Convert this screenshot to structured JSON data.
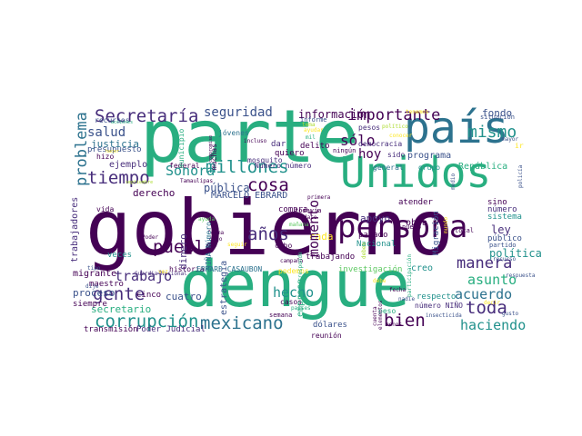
{
  "palette": {
    "dark_purple": "#440154",
    "indigo": "#472d7b",
    "blue": "#3b528b",
    "steel": "#2c728e",
    "teal": "#21918c",
    "green": "#28ae80",
    "lime": "#5ec962",
    "yellow_green": "#addc30",
    "yellow": "#fde725"
  },
  "words": {
    "gobierno": "gobierno",
    "parte": "parte",
    "dengue": "dengue",
    "unidos": "Unidos",
    "pais": "país",
    "persona": "persona",
    "tiempo": "tiempo",
    "corrupcion": "corrupción",
    "millones": "millones",
    "secretaria": "Secretaría",
    "importante": "importante",
    "gente": "gente",
    "mexicano": "mexicano",
    "bien": "bien",
    "toda": "toda",
    "mismo": "mismo",
    "manera": "manera",
    "pueblo": "pueblo",
    "anos": "años",
    "trabajo": "trabajo",
    "momento": "momento",
    "cosa": "cosa",
    "solo": "sólo",
    "asunto": "asunto",
    "acuerdo": "acuerdo",
    "haciendo": "haciendo",
    "hecho": "hecho",
    "hoy": "hoy",
    "problema": "problema",
    "salud": "salud",
    "sonora": "Sonora",
    "seguridad": "seguridad",
    "informacion": "información",
    "justicia": "justicia",
    "ejemplo": "ejemplo",
    "derecho": "derecho",
    "marcelo_ebrard": "MARCELO EBRARD",
    "publica": "pública",
    "apoyo": "apoyo",
    "programa": "programa",
    "republica": "República",
    "politica": "política",
    "ley": "ley",
    "fondo": "fondo",
    "presupuesto": "presupuesto",
    "estrategia": "estrategia",
    "empresa": "empresa",
    "secretario": "secretario",
    "proceso": "proceso",
    "migrante": "migrante",
    "cuatro": "cuatro",
    "maestro": "maestro",
    "siempre": "siempre",
    "transmision": "transmisión",
    "poder_judicial": "Poder Judicial",
    "cinco": "cinco",
    "veces": "veces",
    "vida": "vida",
    "historia": "historia",
    "dinero": "dinero",
    "cada": "cada",
    "nacional": "Nacional",
    "obra": "obra",
    "investigacion": "investigación",
    "migracion": "Migración",
    "respecto": "respecto",
    "pasado": "pasado",
    "trabajando": "trabajando",
    "creo": "creo",
    "general": "general",
    "grupo": "grupo",
    "democracia": "democracia",
    "delito": "delito",
    "quiero": "quiero",
    "atender": "atender",
    "numero_numero": "Número número",
    "numero_nino": "número NIÑO",
    "nina_numero": "NIÑA Número",
    "ebrard_casaubon": "EBRARD CASAUBON",
    "mosquito": "mosquito",
    "jovenes": "jóvenes",
    "federal": "federal",
    "compra": "compra",
    "cabo": "cabo",
    "semana": "semana",
    "casos": "casos",
    "dolares": "dólares",
    "reunion": "reunión",
    "publico": "público",
    "sistema": "sistema",
    "numero": "número",
    "sino": "sino",
    "situacion": "situación",
    "hizo": "hizo",
    "muchas": "muchas",
    "dar": "dar",
    "trabajadores": "trabajadores",
    "recursos": "recursos",
    "municipio": "municipio",
    "pesos": "pesos",
    "informe": "informe",
    "todavia": "todavía",
    "ningun": "ningún",
    "sido": "sido",
    "podemos": "podemos",
    "guardia_nacional": "Guardia Nacional",
    "poder": "Poder",
    "tipo": "tipo",
    "partido": "partido",
    "total": "total",
    "nuevo": "nuevo",
    "dato": "dato",
    "primera": "primera",
    "campana": "campaña",
    "manana": "mañana",
    "paises": "países",
    "fecha": "fecha",
    "ayuda": "ayuda",
    "dije": "dije",
    "forma": "forma",
    "digo": "digo",
    "incluso": "incluso",
    "mayor": "mayor",
    "medio": "medio",
    "tema": "tema",
    "mil": "mil",
    "ayudar": "ayudar",
    "conocer": "conocer",
    "tamaulipas": "Tamaulipas",
    "septiembre": "septiembre",
    "acciones": "acciones",
    "peso": "peso",
    "gusto": "gusto",
    "insecticida": "insecticida",
    "participacion": "participación",
    "nadie": "nadie",
    "cuenta": "cuenta",
    "recurso": "recurso",
    "respuesta": "respuesta",
    "policia": "policía",
    "ir": "ir",
    "hacer": "hacer",
    "compromiso": "compromiso",
    "corresponde": "corresponde",
    "elementos": "elementos",
    "mundo": "mundo",
    "deben": "deben",
    "vez": "vez",
    "tenemos": "tenemos",
    "politico": "político",
    "decir": "decir",
    "menos": "menos",
    "debe": "debe",
    "seguir": "seguir"
  }
}
